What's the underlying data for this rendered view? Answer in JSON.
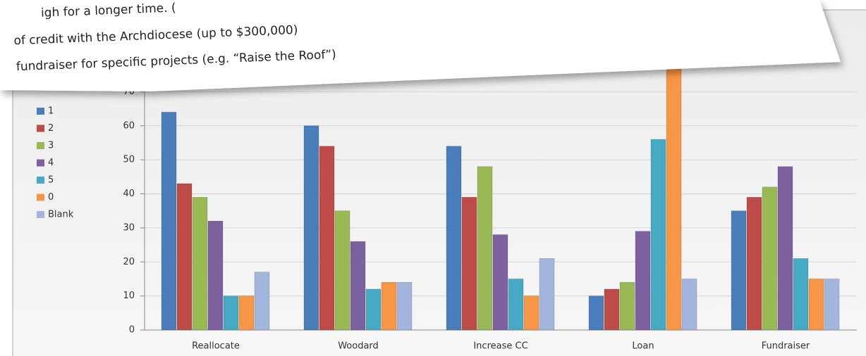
{
  "chart_data": {
    "type": "bar",
    "categories": [
      "Reallocate",
      "Woodard",
      "Increase CC",
      "Loan",
      "Fundraiser"
    ],
    "series": [
      {
        "name": "1",
        "color": "#4a7ebb",
        "values": [
          64,
          60,
          54,
          10,
          35
        ]
      },
      {
        "name": "2",
        "color": "#be4b48",
        "values": [
          43,
          54,
          39,
          12,
          39
        ]
      },
      {
        "name": "3",
        "color": "#98b954",
        "values": [
          39,
          35,
          48,
          14,
          42
        ]
      },
      {
        "name": "4",
        "color": "#7d60a0",
        "values": [
          32,
          26,
          28,
          29,
          48
        ]
      },
      {
        "name": "5",
        "color": "#46aac5",
        "values": [
          10,
          12,
          15,
          56,
          21
        ]
      },
      {
        "name": "0",
        "color": "#f79646",
        "values": [
          10,
          14,
          10,
          79,
          15
        ]
      },
      {
        "name": "Blank",
        "color": "#a2b5dc",
        "values": [
          17,
          14,
          21,
          15,
          15
        ]
      }
    ],
    "ylim": [
      0,
      80
    ],
    "yticks": [
      0,
      10,
      20,
      30,
      40,
      50,
      60,
      70
    ],
    "grid": true,
    "legend": "left"
  },
  "note": {
    "lines": [
      "igh for a longer time. (",
      "of credit with the Archdiocese (up to $300,000)",
      "fundraiser for specific projects (e.g. “Raise the Roof”)"
    ]
  }
}
